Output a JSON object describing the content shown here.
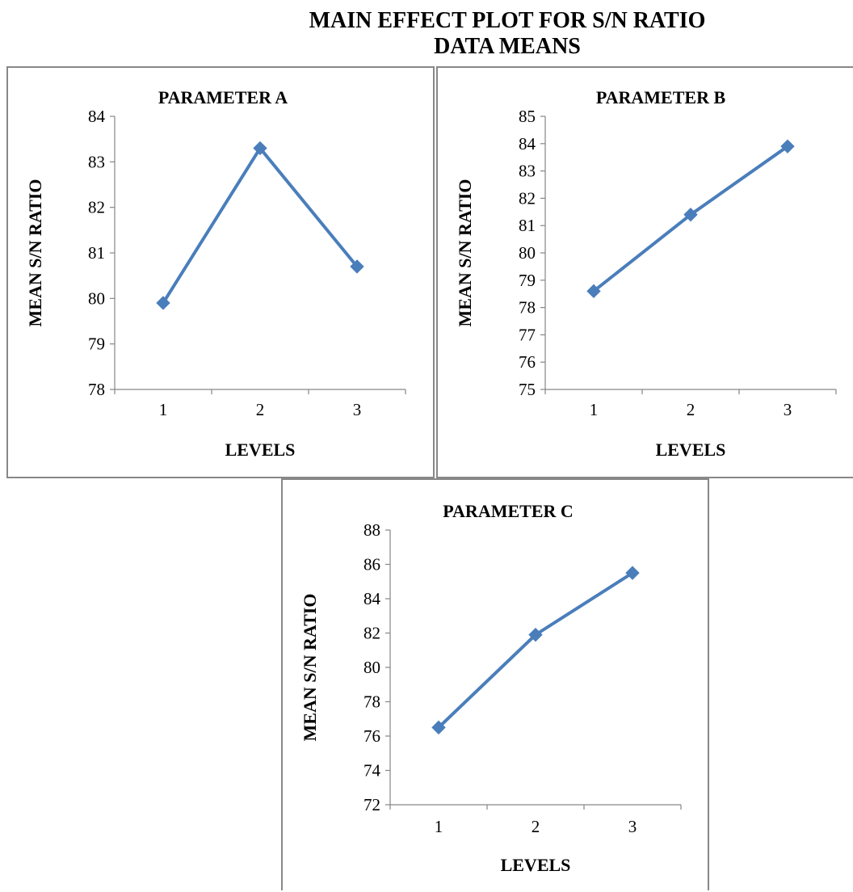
{
  "figure": {
    "title_line1": "MAIN EFFECT PLOT FOR S/N RATIO",
    "title_line2": "DATA MEANS"
  },
  "style": {
    "line_color": "#4a7ebb",
    "axis_color": "#868686"
  },
  "chart_data": [
    {
      "type": "line",
      "title": "PARAMETER A",
      "xlabel": "LEVELS",
      "ylabel": "MEAN S/N RATIO",
      "categories": [
        "1",
        "2",
        "3"
      ],
      "values": [
        79.9,
        83.3,
        80.7
      ],
      "ylim": [
        78,
        84
      ],
      "yticks": [
        "78",
        "79",
        "80",
        "81",
        "82",
        "83",
        "84"
      ],
      "grid": false,
      "marker": "diamond"
    },
    {
      "type": "line",
      "title": "PARAMETER B",
      "xlabel": "LEVELS",
      "ylabel": "MEAN S/N RATIO",
      "categories": [
        "1",
        "2",
        "3"
      ],
      "values": [
        78.6,
        81.4,
        83.9
      ],
      "ylim": [
        75,
        85
      ],
      "yticks": [
        "75",
        "76",
        "77",
        "78",
        "79",
        "80",
        "81",
        "82",
        "83",
        "84",
        "85"
      ],
      "grid": false,
      "marker": "diamond"
    },
    {
      "type": "line",
      "title": "PARAMETER C",
      "xlabel": "LEVELS",
      "ylabel": "MEAN S/N RATIO",
      "categories": [
        "1",
        "2",
        "3"
      ],
      "values": [
        76.5,
        81.9,
        85.5
      ],
      "ylim": [
        72,
        88
      ],
      "yticks": [
        "72",
        "74",
        "76",
        "78",
        "80",
        "82",
        "84",
        "86",
        "88"
      ],
      "grid": false,
      "marker": "diamond"
    }
  ]
}
